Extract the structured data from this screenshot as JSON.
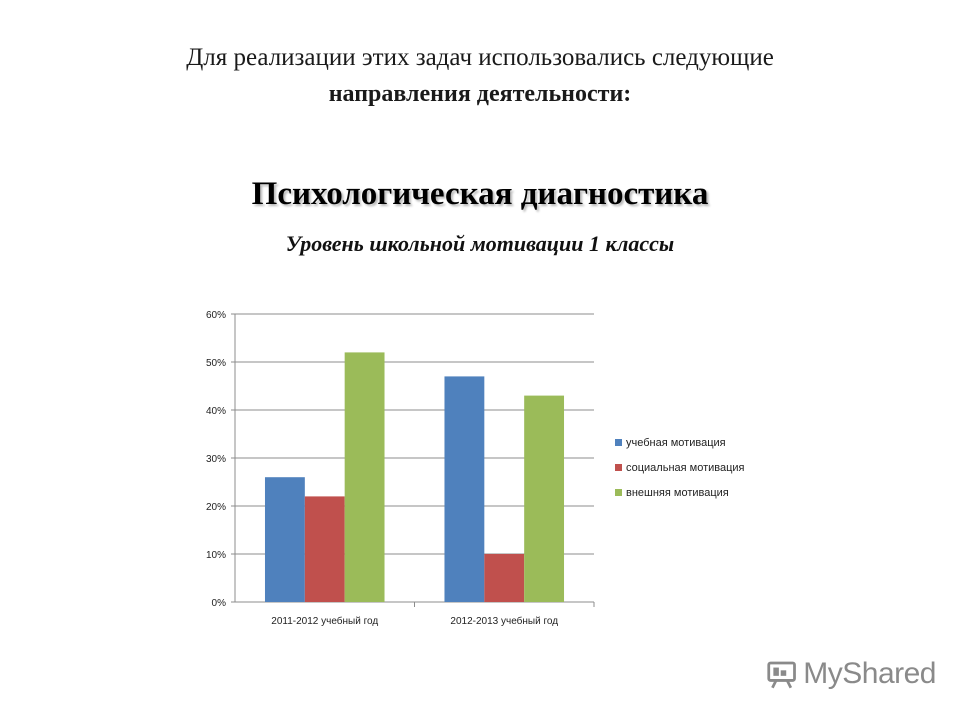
{
  "header": {
    "line1": "Для реализации этих задач использовались следующие",
    "line2": "направления деятельности:"
  },
  "section_title": "Психологическая диагностика",
  "chart_data": {
    "type": "bar",
    "title": "Уровень школьной мотивации 1 классы",
    "xlabel": "",
    "ylabel": "",
    "categories": [
      "2011-2012 учебный год",
      "2012-2013 учебный год"
    ],
    "series": [
      {
        "name": "учебная мотивация",
        "values": [
          26,
          47
        ],
        "color": "#4F81BD"
      },
      {
        "name": "социальная мотивация",
        "values": [
          22,
          10
        ],
        "color": "#C0504D"
      },
      {
        "name": "внешняя мотивация",
        "values": [
          52,
          43
        ],
        "color": "#9BBB59"
      }
    ],
    "ylim": [
      0,
      60
    ],
    "yticks": [
      0,
      10,
      20,
      30,
      40,
      50,
      60
    ],
    "ytick_labels": [
      "0%",
      "10%",
      "20%",
      "30%",
      "40%",
      "50%",
      "60%"
    ],
    "grid": true,
    "legend_position": "right"
  },
  "watermark": {
    "text": "MyShared",
    "icon": "projector-icon"
  }
}
